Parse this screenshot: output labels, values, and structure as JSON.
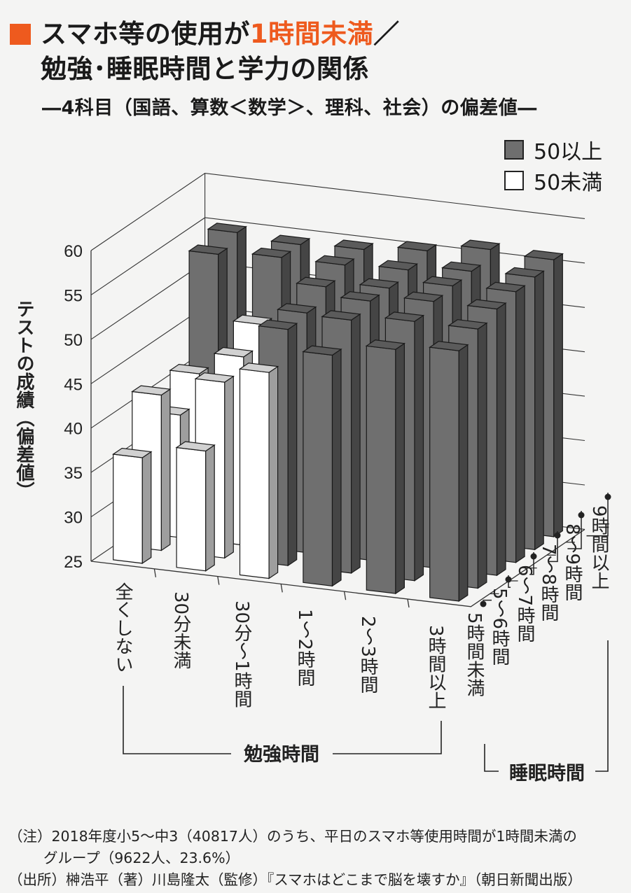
{
  "title": {
    "prefix": "スマホ等の使用が",
    "accent": "1時間未満",
    "slash": "／",
    "line2": "勉強･睡眠時間と学力の関係"
  },
  "subtitle": "―4科目（国語、算数＜数学＞、理科、社会）の偏差値―",
  "legend": [
    {
      "label": "50以上",
      "color": "#6f6f6f"
    },
    {
      "label": "50未満",
      "color": "#ffffff"
    }
  ],
  "chart_data": {
    "type": "bar",
    "ylabel": "テストの成績（偏差値）",
    "ylim": [
      25,
      60
    ],
    "yticks": [
      "25",
      "30",
      "35",
      "40",
      "45",
      "50",
      "55",
      "60"
    ],
    "study_axis_label": "勉強時間",
    "sleep_axis_label": "睡眠時間",
    "study_categories": [
      "全くしない",
      "30分未満",
      "30分〜1時間",
      "1〜2時間",
      "2〜3時間",
      "3時間以上"
    ],
    "sleep_categories": [
      "5時間未満",
      "5〜6時間",
      "6〜7時間",
      "7〜8時間",
      "8〜9時間",
      "9時間以上"
    ],
    "values": [
      [
        36.9,
        42.5,
        38.8,
        42.0,
        54.0,
        55.0
      ],
      [
        38.5,
        44.8,
        46.2,
        48.4,
        54.5,
        54.5
      ],
      [
        48.2,
        51.6,
        52.0,
        53.5,
        54.5,
        54.8
      ],
      [
        51.0,
        53.5,
        54.2,
        54.2,
        54.8,
        55.5
      ],
      [
        52.5,
        54.2,
        55.0,
        55.3,
        55.5,
        56.5
      ],
      [
        53.2,
        54.2,
        55.0,
        55.5,
        55.7,
        56.2
      ]
    ],
    "threshold": 50,
    "colors": {
      "above": "#6f6f6f",
      "below": "#ffffff"
    }
  },
  "notes": {
    "note1": "（注）2018年度小5〜中3（40817人）のうち、平日のスマホ等使用時間が1時間未満の",
    "note1b": "グループ（9622人、23.6%）",
    "source": "（出所）榊浩平（著）川島隆太（監修）『スマホはどこまで脳を壊すか』（朝日新聞出版）"
  }
}
